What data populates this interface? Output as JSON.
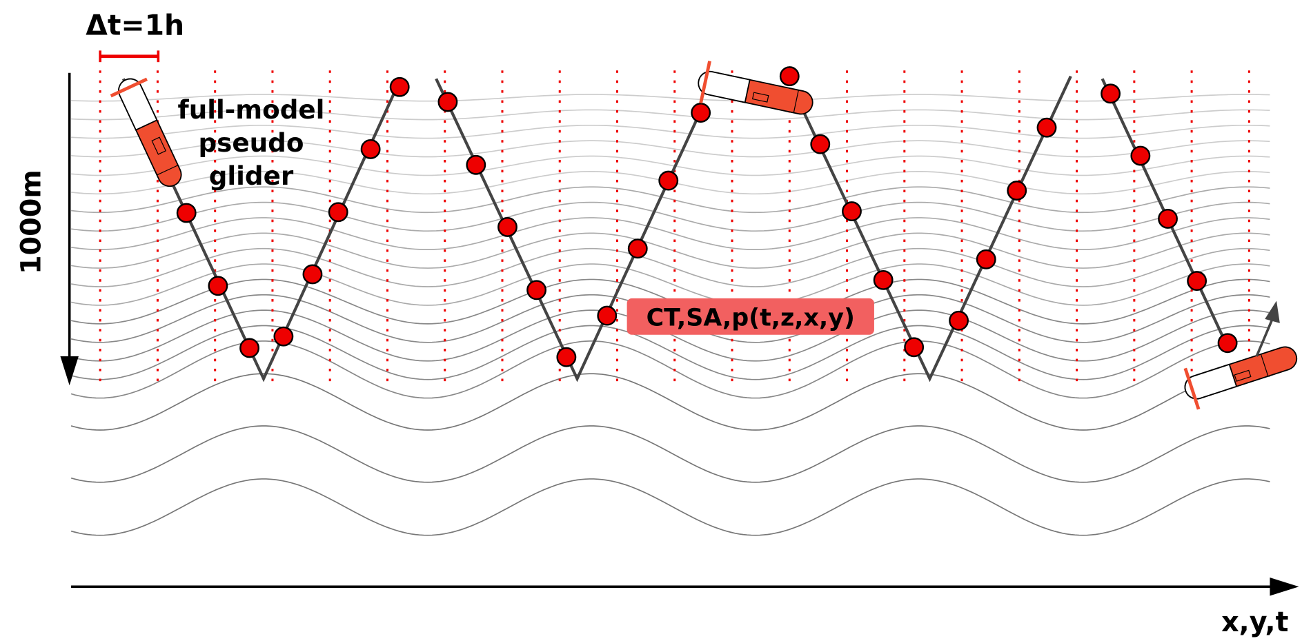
{
  "labels": {
    "time_step": "Δt=1h",
    "glider": [
      "full-model",
      "pseudo",
      "glider"
    ],
    "depth": "1000m",
    "variables": "CT,SA,p(t,z,x,y)",
    "axis": "x,y,t"
  }
}
